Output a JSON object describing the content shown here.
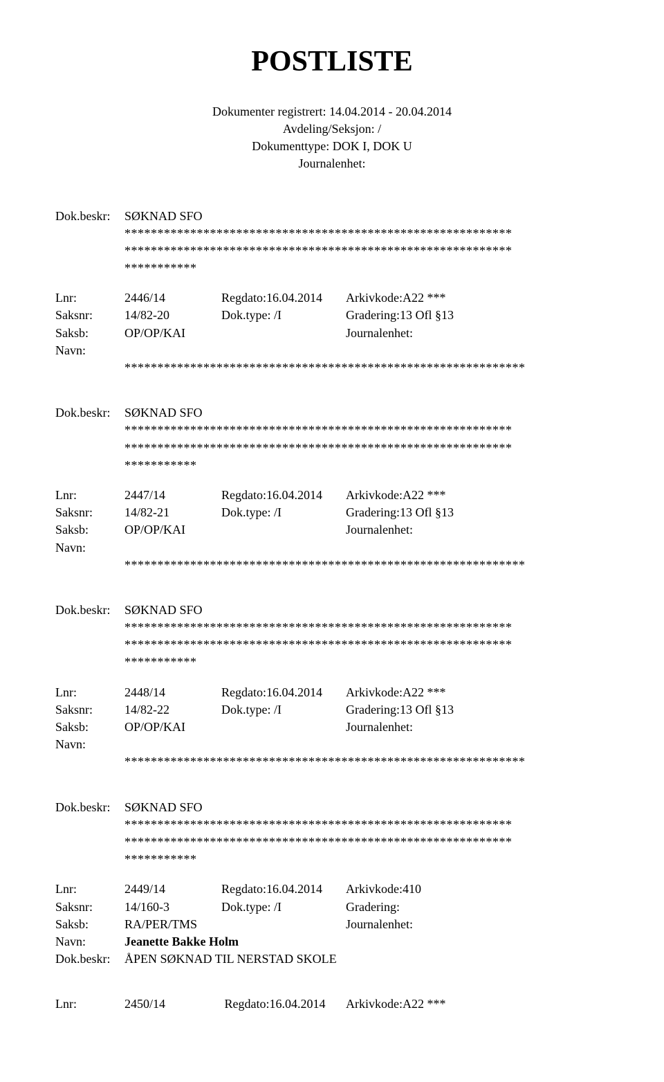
{
  "title": "POSTLISTE",
  "header": {
    "line1": "Dokumenter registrert: 14.04.2014 - 20.04.2014",
    "line2": "Avdeling/Seksjon: /",
    "line3": "Dokumenttype: DOK I, DOK U",
    "line4": "Journalenhet:"
  },
  "stars59": "***********************************************************",
  "stars61": "*************************************************************",
  "stars11": "***********",
  "entries": [
    {
      "dokbeskr_label": "Dok.beskr:",
      "dokbeskr_value": "SØKNAD SFO",
      "show_trailing_stars": true,
      "lnr_label": "Lnr:",
      "lnr_value": "2446/14",
      "regdato": "Regdato:16.04.2014",
      "arkivkode": "Arkivkode:A22 ***",
      "saksnr_label": "Saksnr:",
      "saksnr_value": "14/82-20",
      "doktype": "Dok.type: /I",
      "gradering": "Gradering:13 Ofl §13",
      "saksb_label": "Saksb:",
      "saksb_value": "OP/OP/KAI",
      "journalenhet": "Journalenhet:",
      "navn_label": "Navn:",
      "navn_value": "",
      "show_navn_stars": true
    },
    {
      "dokbeskr_label": "Dok.beskr:",
      "dokbeskr_value": "SØKNAD SFO",
      "show_trailing_stars": true,
      "lnr_label": "Lnr:",
      "lnr_value": "2447/14",
      "regdato": "Regdato:16.04.2014",
      "arkivkode": "Arkivkode:A22 ***",
      "saksnr_label": "Saksnr:",
      "saksnr_value": "14/82-21",
      "doktype": "Dok.type: /I",
      "gradering": "Gradering:13 Ofl §13",
      "saksb_label": "Saksb:",
      "saksb_value": "OP/OP/KAI",
      "journalenhet": "Journalenhet:",
      "navn_label": "Navn:",
      "navn_value": "",
      "show_navn_stars": true
    },
    {
      "dokbeskr_label": "Dok.beskr:",
      "dokbeskr_value": "SØKNAD SFO",
      "show_trailing_stars": true,
      "lnr_label": "Lnr:",
      "lnr_value": "2448/14",
      "regdato": "Regdato:16.04.2014",
      "arkivkode": "Arkivkode:A22 ***",
      "saksnr_label": "Saksnr:",
      "saksnr_value": "14/82-22",
      "doktype": "Dok.type: /I",
      "gradering": "Gradering:13 Ofl §13",
      "saksb_label": "Saksb:",
      "saksb_value": "OP/OP/KAI",
      "journalenhet": "Journalenhet:",
      "navn_label": "Navn:",
      "navn_value": "",
      "show_navn_stars": true
    },
    {
      "dokbeskr_label": "Dok.beskr:",
      "dokbeskr_value": "SØKNAD SFO",
      "show_trailing_stars": true,
      "lnr_label": "Lnr:",
      "lnr_value": "2449/14",
      "regdato": "Regdato:16.04.2014",
      "arkivkode": "Arkivkode:410",
      "saksnr_label": "Saksnr:",
      "saksnr_value": "14/160-3",
      "doktype": "Dok.type: /I",
      "gradering": "Gradering:",
      "saksb_label": "Saksb:",
      "saksb_value": "RA/PER/TMS",
      "journalenhet": "Journalenhet:",
      "navn_label": "Navn:",
      "navn_value": "Jeanette Bakke Holm",
      "show_navn_stars": false,
      "dokbeskr2_label": "Dok.beskr:",
      "dokbeskr2_value": "ÅPEN SØKNAD TIL NERSTAD SKOLE"
    }
  ],
  "final": {
    "lnr_label": "Lnr:",
    "lnr_value": "2450/14",
    "regdato": "Regdato:16.04.2014",
    "arkivkode": "Arkivkode:A22 ***"
  }
}
